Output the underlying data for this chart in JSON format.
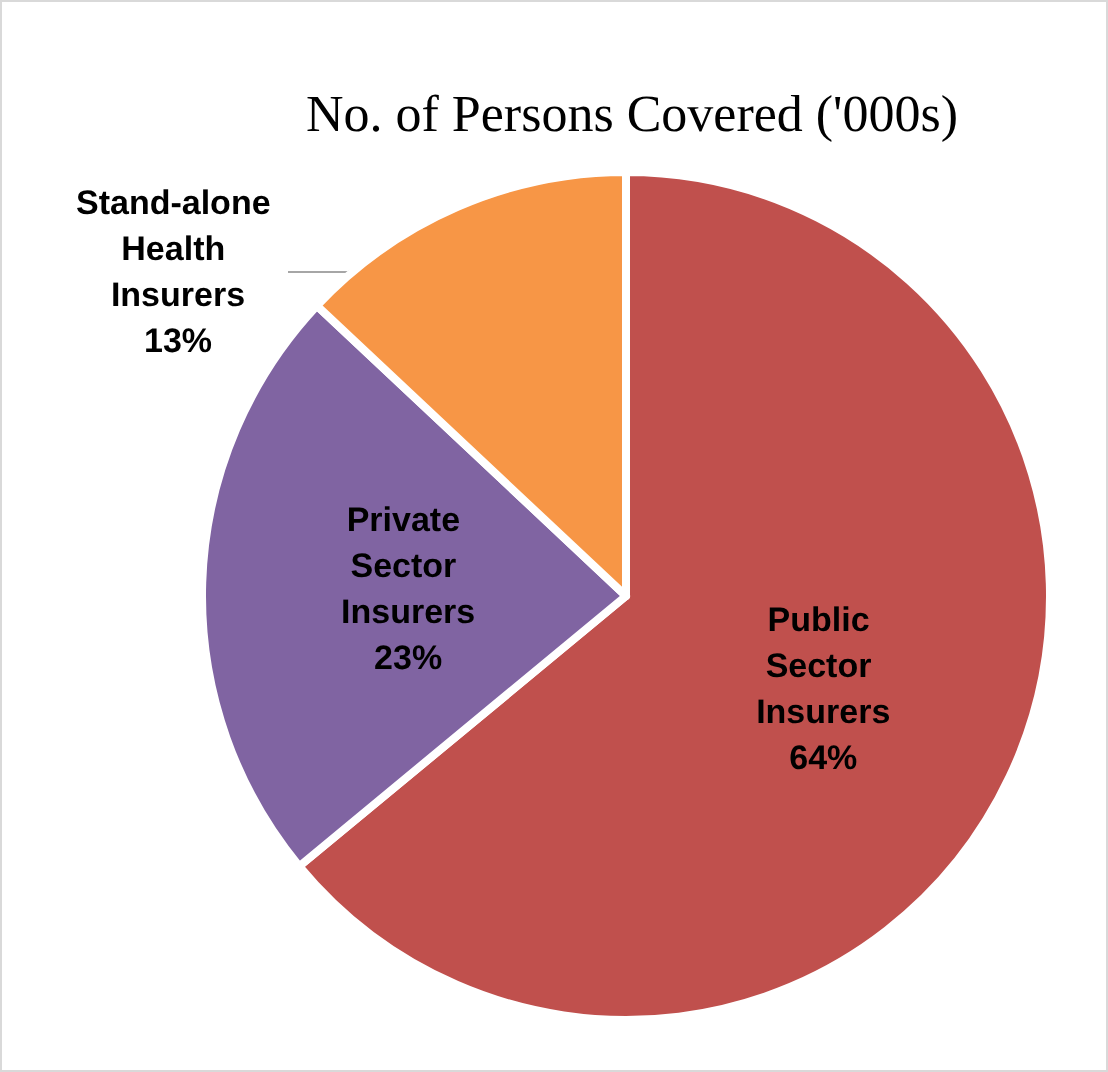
{
  "chart_data": {
    "type": "pie",
    "title": "No. of Persons Covered ('000s)",
    "categories": [
      "Public Sector Insurers",
      "Private Sector Insurers",
      "Stand-alone Health Insurers"
    ],
    "values": [
      64,
      23,
      13
    ],
    "value_labels": [
      "64%",
      "23%",
      "13%"
    ],
    "colors": [
      "#c0504d",
      "#8064a2",
      "#f79646"
    ],
    "legend": false
  }
}
